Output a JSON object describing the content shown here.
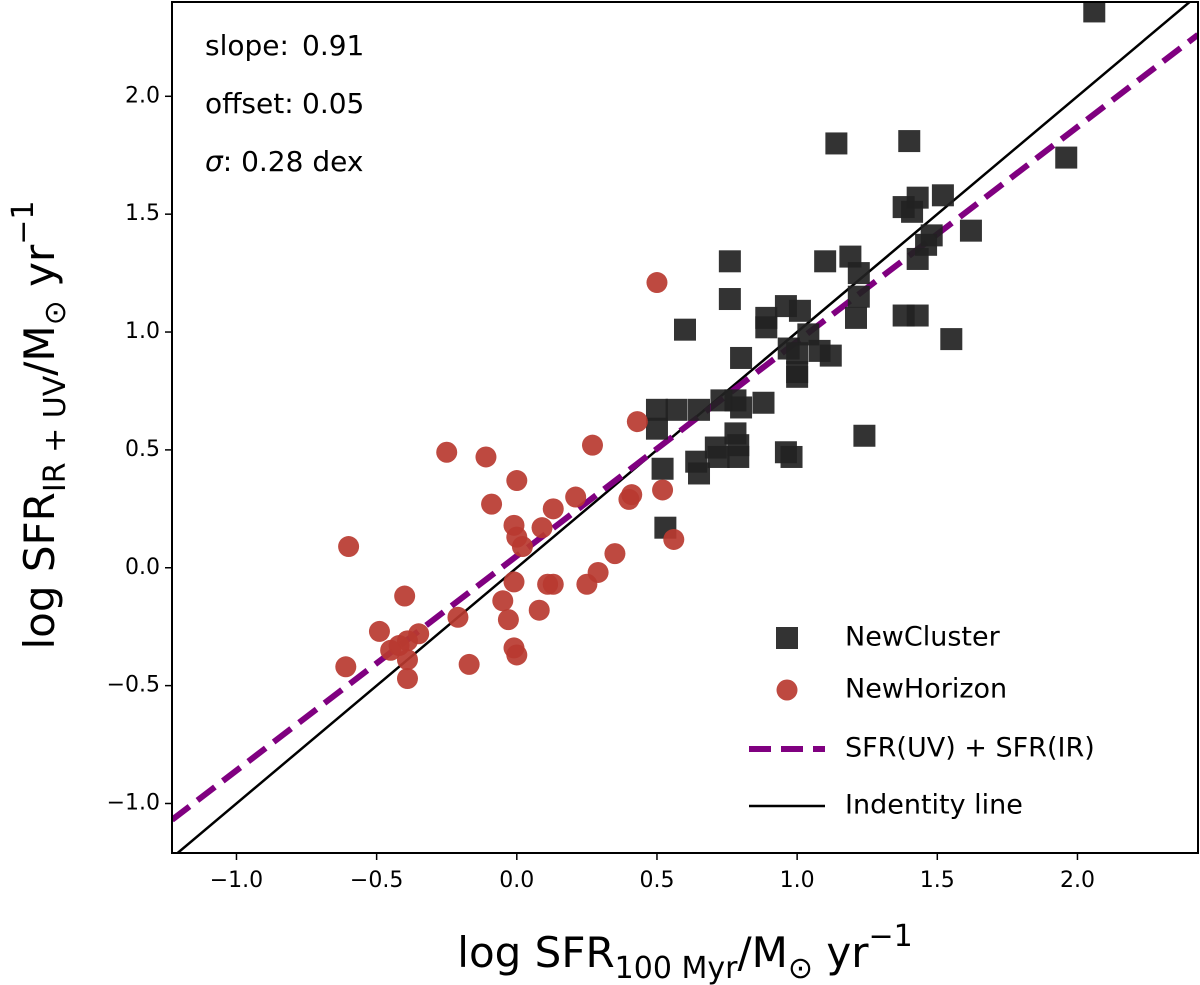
{
  "chart_data": {
    "type": "scatter",
    "xlabel_parts": [
      "log SFR",
      "100 Myr",
      "/M",
      "⊙",
      " yr",
      "−1"
    ],
    "ylabel_parts": [
      "log SFR",
      "IR + UV",
      "/M",
      "⊙",
      " yr",
      "−1"
    ],
    "xlim": [
      -1.23,
      2.43
    ],
    "ylim": [
      -1.21,
      2.4
    ],
    "xticks": [
      {
        "value": -1,
        "label": "−1.0"
      },
      {
        "value": -0.5,
        "label": "−0.5"
      },
      {
        "value": 0,
        "label": "0.0"
      },
      0.5,
      {
        "value": 1,
        "label": "1.0"
      },
      1.5,
      {
        "value": 2,
        "label": "2.0"
      }
    ],
    "yticks": [
      {
        "value": -1,
        "label": "−1.0"
      },
      {
        "value": -0.5,
        "label": "−0.5"
      },
      {
        "value": 0,
        "label": "0.0"
      },
      0.5,
      {
        "value": 1,
        "label": "1.0"
      },
      1.5,
      {
        "value": 2,
        "label": "2.0"
      }
    ],
    "series": [
      {
        "name": "NewCluster",
        "marker": "square",
        "color": "#222222",
        "x": [
          2.06,
          1.14,
          1.4,
          1.96,
          1.52,
          1.43,
          1.38,
          1.41,
          1.62,
          1.48,
          1.46,
          1.19,
          0.76,
          1.1,
          1.43,
          1.22,
          1.22,
          0.76,
          0.96,
          1.01,
          0.89,
          1.21,
          1.38,
          1.43,
          0.6,
          0.89,
          1.04,
          1.55,
          0.97,
          1.08,
          1.0,
          1.12,
          0.8,
          1.0,
          1.0,
          1.24,
          0.73,
          0.78,
          0.8,
          0.88,
          0.5,
          0.57,
          0.65,
          0.78,
          0.71,
          0.79,
          0.72,
          0.79,
          0.96,
          0.98,
          0.5,
          0.52,
          0.64,
          0.65,
          0.53
        ],
        "values": [
          2.36,
          1.8,
          1.81,
          1.74,
          1.58,
          1.57,
          1.53,
          1.51,
          1.43,
          1.41,
          1.37,
          1.32,
          1.3,
          1.3,
          1.31,
          1.25,
          1.15,
          1.14,
          1.11,
          1.09,
          1.06,
          1.06,
          1.07,
          1.07,
          1.01,
          1.02,
          0.99,
          0.97,
          0.93,
          0.92,
          0.91,
          0.9,
          0.89,
          0.83,
          0.81,
          0.56,
          0.71,
          0.71,
          0.68,
          0.7,
          0.67,
          0.67,
          0.67,
          0.57,
          0.51,
          0.52,
          0.47,
          0.47,
          0.49,
          0.47,
          0.59,
          0.42,
          0.45,
          0.4,
          0.17
        ]
      },
      {
        "name": "NewHorizon",
        "marker": "circle",
        "color": "#b83a30",
        "x": [
          0.5,
          0.43,
          -0.25,
          -0.11,
          0.27,
          0.0,
          0.41,
          0.4,
          0.21,
          -0.09,
          0.52,
          0.13,
          -0.01,
          0.09,
          0.0,
          0.02,
          0.56,
          -0.6,
          0.35,
          0.29,
          -0.01,
          0.25,
          0.11,
          0.13,
          -0.4,
          -0.05,
          0.08,
          -0.21,
          -0.03,
          -0.49,
          -0.35,
          -0.39,
          -0.42,
          -0.45,
          -0.01,
          0.0,
          -0.39,
          -0.61,
          -0.17,
          -0.39
        ],
        "values": [
          1.21,
          0.62,
          0.49,
          0.47,
          0.52,
          0.37,
          0.31,
          0.29,
          0.3,
          0.27,
          0.33,
          0.25,
          0.18,
          0.17,
          0.13,
          0.09,
          0.12,
          0.09,
          0.06,
          -0.02,
          -0.06,
          -0.07,
          -0.07,
          -0.07,
          -0.12,
          -0.14,
          -0.18,
          -0.21,
          -0.22,
          -0.27,
          -0.28,
          -0.31,
          -0.33,
          -0.35,
          -0.34,
          -0.37,
          -0.39,
          -0.42,
          -0.41,
          -0.47
        ]
      }
    ],
    "fit": {
      "name": "SFR(UV) + SFR(IR)",
      "color": "#800080",
      "style": "dashed",
      "slope": 0.91,
      "offset": 0.05
    },
    "identity": {
      "name": "Indentity line",
      "color": "#000000",
      "style": "solid"
    },
    "annotations": {
      "slope_label": "slope:",
      "offset_label": "offset:",
      "value_color": "#800080",
      "sigma_symbol": "σ",
      "sigma_text": ": 0.28 dex"
    },
    "legend": "lower right"
  }
}
